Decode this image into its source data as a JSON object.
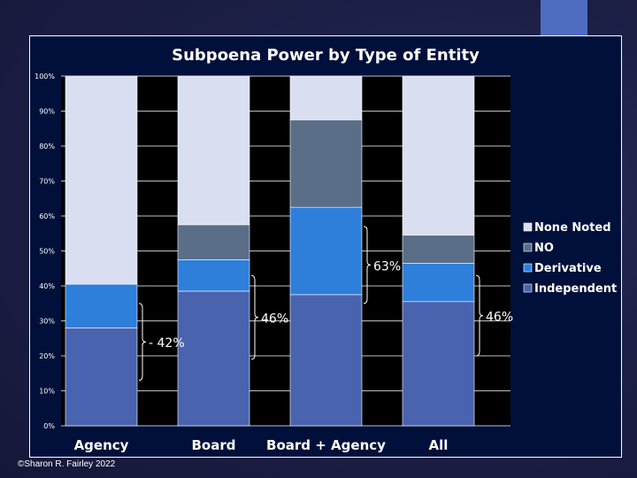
{
  "chart_data": {
    "type": "bar",
    "stacked": true,
    "title": "Subpoena Power by Type of Entity",
    "categories": [
      "Agency",
      "Board",
      "Board + Agency",
      "All"
    ],
    "series": [
      {
        "name": "Independent",
        "values": [
          28,
          38.5,
          37.5,
          35.5
        ],
        "color": "#4a63ae"
      },
      {
        "name": "Derivative",
        "values": [
          12.5,
          9,
          25,
          11
        ],
        "color": "#2e7fda"
      },
      {
        "name": "NO",
        "values": [
          0,
          10,
          25,
          8
        ],
        "color": "#5a6e88"
      },
      {
        "name": "None Noted",
        "values": [
          59.5,
          42.5,
          12.5,
          45.5
        ],
        "color": "#d9dff0"
      }
    ],
    "legend_order": [
      "None Noted",
      "NO",
      "Derivative",
      "Independent"
    ],
    "legend_position": "right",
    "ylim": [
      0,
      100
    ],
    "yticks": [
      "0%",
      "10%",
      "20%",
      "30%",
      "40%",
      "50%",
      "60%",
      "70%",
      "80%",
      "90%",
      "100%"
    ],
    "yticks_values": [
      0,
      10,
      20,
      30,
      40,
      50,
      60,
      70,
      80,
      90,
      100
    ],
    "annotations": [
      {
        "category": "Agency",
        "label": "42%",
        "from": 13,
        "to": 35,
        "prefix": "- "
      },
      {
        "category": "Board",
        "label": "46%",
        "from": 19,
        "to": 43,
        "prefix": ""
      },
      {
        "category": "Board + Agency",
        "label": "63%",
        "from": 35,
        "to": 57,
        "prefix": ""
      },
      {
        "category": "All",
        "label": "46%",
        "from": 20,
        "to": 43,
        "prefix": ""
      }
    ]
  },
  "footer": "©Sharon R. Fairley 2022"
}
